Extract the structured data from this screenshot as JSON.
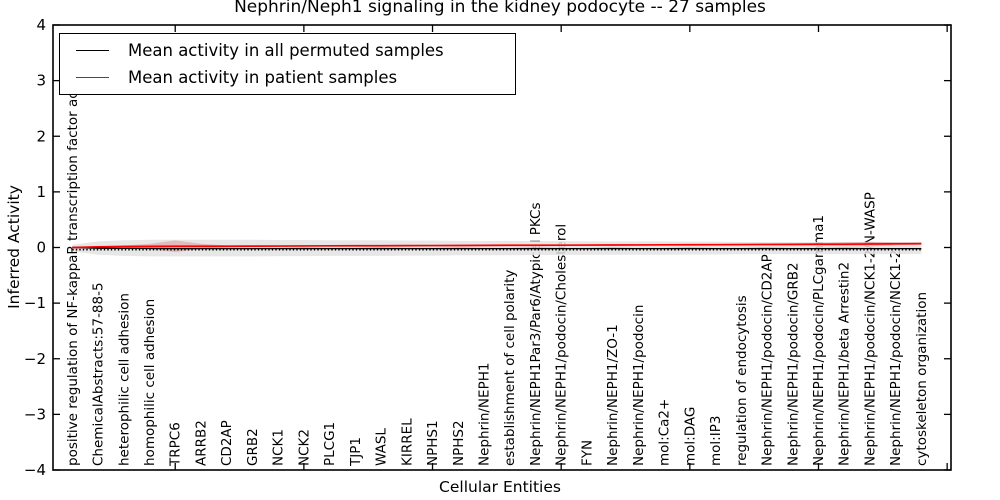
{
  "chart_data": {
    "type": "line",
    "title": "Nephrin/Neph1 signaling in the kidney podocyte -- 27 samples",
    "xlabel": "Cellular Entities",
    "ylabel": "Inferred Activity",
    "xlim": [
      0.25,
      35.15
    ],
    "ylim": [
      -4,
      4
    ],
    "yticks": [
      -4,
      -3,
      -2,
      -1,
      0,
      1,
      2,
      3,
      4
    ],
    "ytick_labels": [
      "−4",
      "−3",
      "−2",
      "−1",
      "0",
      "1",
      "2",
      "3",
      "4"
    ],
    "xticks": [
      5,
      10,
      15,
      20,
      25,
      30,
      35
    ],
    "grid": false,
    "legend_position": "upper left",
    "categories": [
      "positive regulation of NF-kappaB transcription factor activity",
      "ChemicalAbstracts:57-88-5",
      "heterophilic cell adhesion",
      "homophilic cell adhesion",
      "TRPC6",
      "ARRB2",
      "CD2AP",
      "GRB2",
      "NCK1",
      "NCK2",
      "PLCG1",
      "TJP1",
      "WASL",
      "KIRREL",
      "NPHS1",
      "NPHS2",
      "Nephrin/NEPH1",
      "establishment of cell polarity",
      "Nephrin/NEPH1Par3/Par6/Atypical PKCs",
      "Nephrin/NEPH1/podocin/Cholesterol",
      "FYN",
      "Nephrin/NEPH1/ZO-1",
      "Nephrin/NEPH1/podocin",
      "mol:Ca2+",
      "mol:DAG",
      "mol:IP3",
      "regulation of endocytosis",
      "Nephrin/NEPH1/podocin/CD2AP",
      "Nephrin/NEPH1/podocin/GRB2",
      "Nephrin/NEPH1/podocin/PLCgamma1",
      "Nephrin/NEPH1/beta Arrestin2",
      "Nephrin/NEPH1/podocin/NCK1-2/N-WASP",
      "Nephrin/NEPH1/podocin/NCK1-2",
      "cytoskeleton organization"
    ],
    "series": [
      {
        "name": "Mean activity in all permuted samples",
        "color": "#000000",
        "values": [
          0,
          -0.012,
          -0.016,
          -0.018,
          -0.02,
          -0.02,
          -0.019,
          -0.02,
          -0.02,
          -0.019,
          -0.02,
          -0.02,
          -0.019,
          -0.02,
          -0.02,
          -0.019,
          -0.02,
          -0.02,
          -0.019,
          -0.02,
          -0.02,
          -0.019,
          -0.02,
          -0.02,
          -0.019,
          -0.02,
          -0.02,
          -0.019,
          -0.02,
          -0.02,
          -0.019,
          -0.02,
          -0.02,
          -0.02
        ]
      },
      {
        "name": "Mean activity in patient samples",
        "color": "#ff0000",
        "values": [
          0,
          0.012,
          0.018,
          0.02,
          0.022,
          0.022,
          0.024,
          0.025,
          0.026,
          0.028,
          0.03,
          0.031,
          0.032,
          0.034,
          0.035,
          0.036,
          0.038,
          0.04,
          0.041,
          0.042,
          0.044,
          0.045,
          0.046,
          0.048,
          0.05,
          0.051,
          0.053,
          0.055,
          0.056,
          0.058,
          0.06,
          0.063,
          0.066,
          0.07
        ]
      }
    ],
    "marker_row": {
      "color": "#000000",
      "y": -0.04,
      "style": "dotted"
    },
    "bands": [
      {
        "name": "permuted-range",
        "color": "#e3e3e3",
        "opacity": 0.85,
        "upper": [
          0.05,
          0.11,
          0.13,
          0.14,
          0.14,
          0.14,
          0.14,
          0.14,
          0.135,
          0.135,
          0.13,
          0.13,
          0.13,
          0.125,
          0.125,
          0.12,
          0.12,
          0.12,
          0.115,
          0.115,
          0.11,
          0.11,
          0.11,
          0.11,
          0.105,
          0.105,
          0.1,
          0.1,
          0.1,
          0.1,
          0.1,
          0.1,
          0.1,
          0.095
        ],
        "lower": [
          -0.07,
          -0.13,
          -0.15,
          -0.16,
          -0.16,
          -0.16,
          -0.16,
          -0.16,
          -0.155,
          -0.155,
          -0.15,
          -0.15,
          -0.15,
          -0.145,
          -0.145,
          -0.14,
          -0.14,
          -0.14,
          -0.135,
          -0.135,
          -0.13,
          -0.13,
          -0.13,
          -0.13,
          -0.125,
          -0.125,
          -0.12,
          -0.12,
          -0.12,
          -0.12,
          -0.12,
          -0.12,
          -0.12,
          -0.115
        ]
      },
      {
        "name": "patient-range",
        "color": "#e05a5a",
        "opacity": 0.32,
        "upper": [
          0.004,
          0.022,
          0.038,
          0.065,
          0.127,
          0.067,
          0.039,
          0.035,
          0.034,
          0.036,
          0.038,
          0.039,
          0.04,
          0.042,
          0.043,
          0.044,
          0.046,
          0.05,
          0.051,
          0.052,
          0.054,
          0.057,
          0.058,
          0.06,
          0.062,
          0.065,
          0.068,
          0.071,
          0.074,
          0.08,
          0.095,
          0.103,
          0.094,
          0.088
        ],
        "lower": [
          -0.004,
          0.002,
          -0.002,
          -0.025,
          -0.083,
          -0.023,
          0.009,
          0.015,
          0.018,
          0.02,
          0.022,
          0.023,
          0.024,
          0.026,
          0.027,
          0.028,
          0.03,
          0.03,
          0.031,
          0.032,
          0.034,
          0.033,
          0.034,
          0.036,
          0.038,
          0.037,
          0.038,
          0.039,
          0.038,
          0.036,
          0.025,
          0.023,
          0.038,
          0.052
        ]
      }
    ]
  }
}
